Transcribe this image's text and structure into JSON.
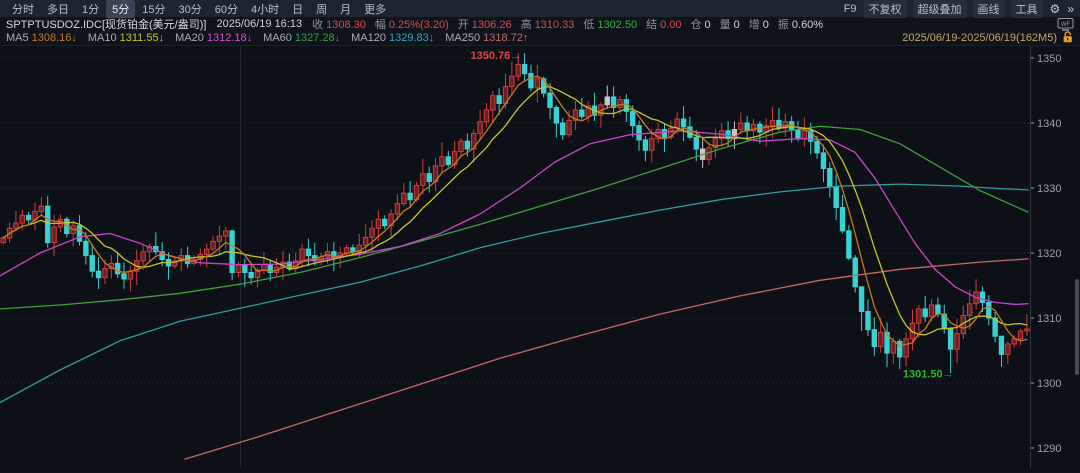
{
  "toolbar": {
    "tabs": [
      {
        "label": "分时",
        "selected": false
      },
      {
        "label": "多日",
        "selected": false
      },
      {
        "label": "1分",
        "selected": false
      },
      {
        "label": "5分",
        "selected": true
      },
      {
        "label": "15分",
        "selected": false
      },
      {
        "label": "30分",
        "selected": false
      },
      {
        "label": "60分",
        "selected": false
      },
      {
        "label": "4小时",
        "selected": false
      },
      {
        "label": "日",
        "selected": false
      },
      {
        "label": "周",
        "selected": false
      },
      {
        "label": "月",
        "selected": false
      },
      {
        "label": "更多",
        "selected": false
      }
    ],
    "f9": "F9",
    "right_buttons": [
      "不复权",
      "超级叠加",
      "画线",
      "工具"
    ],
    "gear_icon": "⚙",
    "chevrons_icon": "»"
  },
  "info_bar": {
    "symbol": "SPTPTUSDOZ.IDC[现货铂金(美元/盎司)]",
    "time": "2025/06/19 16:13",
    "fields": [
      {
        "label": "收",
        "value": "1308.30",
        "color": "#e04646"
      },
      {
        "label": "幅",
        "value": "0.25%(3.20)",
        "color": "#e04646"
      },
      {
        "label": "开",
        "value": "1306.26",
        "color": "#e04646"
      },
      {
        "label": "高",
        "value": "1310.33",
        "color": "#e04646"
      },
      {
        "label": "低",
        "value": "1302.50",
        "color": "#2eb52e"
      },
      {
        "label": "结",
        "value": "0.00",
        "color": "#e04646"
      },
      {
        "label": "仓",
        "value": "0",
        "color": "#d4d8df"
      },
      {
        "label": "量",
        "value": "0",
        "color": "#d4d8df"
      },
      {
        "label": "增",
        "value": "0",
        "color": "#d4d8df"
      },
      {
        "label": "振",
        "value": "0.60%",
        "color": "#d4d8df"
      }
    ],
    "wf_icon": "WF"
  },
  "ma_bar": {
    "items": [
      {
        "label": "MA5",
        "value": "1308.16",
        "arrow": "↓",
        "color": "#c8791e"
      },
      {
        "label": "MA10",
        "value": "1311.55",
        "arrow": "↓",
        "color": "#c6c62a"
      },
      {
        "label": "MA20",
        "value": "1312.18",
        "arrow": "↓",
        "color": "#d455d4"
      },
      {
        "label": "MA60",
        "value": "1327.28",
        "arrow": "↓",
        "color": "#3f9e3f"
      },
      {
        "label": "MA120",
        "value": "1329.83",
        "arrow": "↓",
        "color": "#2fa8b8"
      },
      {
        "label": "MA250",
        "value": "1318.72",
        "arrow": "↑",
        "color": "#c96a6a"
      }
    ],
    "range": "2025/06/19-2025/06/19(162M5)"
  },
  "chart_data": {
    "type": "candlestick",
    "symbol": "SPTPTUSDOZ.IDC",
    "interval": "M5",
    "bar_count": 162,
    "open_first": 1321.6,
    "closes": [
      1322.3,
      1323.8,
      1324.6,
      1325.8,
      1325.1,
      1326.4,
      1327.2,
      1321.6,
      1324.0,
      1325.2,
      1323.0,
      1324.2,
      1321.8,
      1319.6,
      1317.2,
      1316.2,
      1317.6,
      1318.4,
      1316.8,
      1316.0,
      1317.2,
      1318.8,
      1320.2,
      1321.0,
      1320.2,
      1319.0,
      1318.0,
      1318.8,
      1319.6,
      1318.4,
      1319.0,
      1319.8,
      1320.6,
      1321.8,
      1322.6,
      1323.4,
      1317.0,
      1318.2,
      1317.0,
      1316.2,
      1317.4,
      1318.2,
      1317.0,
      1317.8,
      1318.6,
      1317.6,
      1318.8,
      1320.6,
      1319.6,
      1318.8,
      1319.4,
      1320.2,
      1319.4,
      1320.0,
      1320.8,
      1320.2,
      1321.2,
      1322.4,
      1323.8,
      1325.2,
      1324.2,
      1326.0,
      1327.6,
      1329.2,
      1328.2,
      1330.4,
      1332.2,
      1331.0,
      1333.4,
      1334.8,
      1333.6,
      1335.6,
      1337.2,
      1336.0,
      1338.4,
      1340.2,
      1342.0,
      1344.2,
      1343.0,
      1345.6,
      1347.2,
      1349.0,
      1347.6,
      1345.4,
      1346.8,
      1344.6,
      1342.4,
      1340.0,
      1338.2,
      1340.4,
      1342.0,
      1341.0,
      1342.6,
      1341.2,
      1342.8,
      1344.0,
      1342.4,
      1343.6,
      1341.8,
      1339.6,
      1337.4,
      1335.8,
      1337.6,
      1339.0,
      1337.8,
      1339.2,
      1340.6,
      1339.4,
      1337.8,
      1336.0,
      1334.4,
      1336.2,
      1337.6,
      1338.8,
      1337.6,
      1339.0,
      1340.0,
      1338.8,
      1339.8,
      1338.6,
      1339.6,
      1340.4,
      1339.2,
      1340.2,
      1339.0,
      1337.6,
      1338.8,
      1337.2,
      1335.4,
      1333.0,
      1330.2,
      1327.0,
      1323.4,
      1319.2,
      1314.8,
      1311.0,
      1308.2,
      1305.6,
      1307.8,
      1304.6,
      1306.4,
      1304.0,
      1306.8,
      1309.2,
      1311.4,
      1310.2,
      1312.0,
      1310.6,
      1308.4,
      1305.2,
      1307.6,
      1310.4,
      1312.2,
      1314.0,
      1312.4,
      1310.0,
      1307.2,
      1304.4,
      1306.0,
      1306.8,
      1308.0,
      1308.3
    ],
    "wick_overrides": {
      "36": [
        1323.6,
        1315.8
      ],
      "81": [
        1350.76,
        1346.5
      ],
      "135": [
        1312.5,
        1308.0
      ],
      "140": [
        1307.0,
        1302.9
      ],
      "149": [
        1308.6,
        1301.5
      ],
      "157": [
        1306.2,
        1302.5
      ]
    },
    "flat_bars": [
      95,
      110,
      115
    ],
    "high_label": {
      "text": "1350.76",
      "arrow": "→",
      "bar": 81,
      "value": 1350.76
    },
    "low_label": {
      "text": "1301.50",
      "arrow": "→",
      "bar": 149,
      "value": 1301.5
    },
    "y_axis": {
      "ticks": [
        1350,
        1340,
        1330,
        1320,
        1310,
        1300,
        1290
      ],
      "min": 1287,
      "max": 1352
    },
    "ma_curves": {
      "ma20": [
        [
          0,
          1316.5
        ],
        [
          40,
          1320
        ],
        [
          80,
          1322.5
        ],
        [
          110,
          1323
        ],
        [
          140,
          1321.5
        ],
        [
          170,
          1319.5
        ],
        [
          200,
          1318.5
        ],
        [
          240,
          1318.2
        ],
        [
          280,
          1318.3
        ],
        [
          320,
          1319
        ],
        [
          360,
          1319.8
        ],
        [
          400,
          1321
        ],
        [
          440,
          1323
        ],
        [
          480,
          1326
        ],
        [
          520,
          1330
        ],
        [
          555,
          1334
        ],
        [
          590,
          1336.8
        ],
        [
          630,
          1338.2
        ],
        [
          680,
          1338.8
        ],
        [
          720,
          1338.3
        ],
        [
          760,
          1337.2
        ],
        [
          800,
          1337.6
        ],
        [
          830,
          1337.4
        ],
        [
          855,
          1335.5
        ],
        [
          875,
          1331.5
        ],
        [
          895,
          1326.5
        ],
        [
          915,
          1321.5
        ],
        [
          935,
          1317.5
        ],
        [
          955,
          1314.8
        ],
        [
          975,
          1313.2
        ],
        [
          995,
          1312.4
        ],
        [
          1015,
          1312.1
        ],
        [
          1028,
          1312.2
        ]
      ],
      "ma60": [
        [
          0,
          1311.4
        ],
        [
          60,
          1312
        ],
        [
          120,
          1312.8
        ],
        [
          180,
          1313.8
        ],
        [
          240,
          1315.2
        ],
        [
          300,
          1317
        ],
        [
          360,
          1319.3
        ],
        [
          420,
          1321.8
        ],
        [
          480,
          1324.4
        ],
        [
          540,
          1327.2
        ],
        [
          600,
          1330
        ],
        [
          660,
          1333
        ],
        [
          720,
          1336
        ],
        [
          780,
          1338.6
        ],
        [
          820,
          1339.5
        ],
        [
          860,
          1339
        ],
        [
          900,
          1336.8
        ],
        [
          940,
          1333.2
        ],
        [
          980,
          1329.6
        ],
        [
          1028,
          1326.3
        ]
      ],
      "ma120": [
        [
          0,
          1297
        ],
        [
          60,
          1302
        ],
        [
          120,
          1306.5
        ],
        [
          180,
          1309.5
        ],
        [
          240,
          1311.5
        ],
        [
          300,
          1313.5
        ],
        [
          360,
          1315.5
        ],
        [
          420,
          1318
        ],
        [
          480,
          1320.8
        ],
        [
          540,
          1323
        ],
        [
          600,
          1324.8
        ],
        [
          660,
          1326.6
        ],
        [
          720,
          1328.2
        ],
        [
          780,
          1329.4
        ],
        [
          840,
          1330.3
        ],
        [
          900,
          1330.6
        ],
        [
          960,
          1330.3
        ],
        [
          1000,
          1329.9
        ],
        [
          1028,
          1329.7
        ]
      ],
      "ma250": [
        [
          185,
          1288.3
        ],
        [
          260,
          1291.8
        ],
        [
          340,
          1295.8
        ],
        [
          420,
          1299.8
        ],
        [
          500,
          1303.8
        ],
        [
          580,
          1307.3
        ],
        [
          660,
          1310.6
        ],
        [
          740,
          1313.4
        ],
        [
          820,
          1315.8
        ],
        [
          900,
          1317.5
        ],
        [
          980,
          1318.6
        ],
        [
          1028,
          1319.1
        ]
      ]
    },
    "colors": {
      "up_stroke": "#cf3d3d",
      "up_fill": "#6e2020",
      "down": "#38d2d2",
      "flat": "#c8c8c8",
      "grid": "#2c313d",
      "axis_text": "#9aa0ab",
      "ma5": "#c8791e",
      "ma10": "#c6c62a",
      "ma20": "#cc44cc",
      "ma60": "#3f9e3f",
      "ma120": "#2e9e9e",
      "ma250": "#c56868",
      "high_label": "#e04646",
      "low_label": "#2eb52e"
    }
  }
}
